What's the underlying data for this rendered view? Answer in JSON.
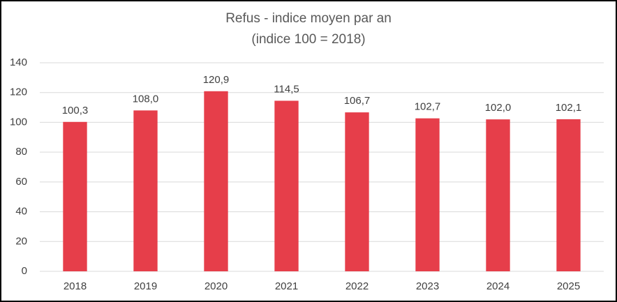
{
  "chart_data": {
    "type": "bar",
    "title": "Refus - indice moyen par an",
    "subtitle": "(indice 100 = 2018)",
    "categories": [
      "2018",
      "2019",
      "2020",
      "2021",
      "2022",
      "2023",
      "2024",
      "2025"
    ],
    "values": [
      100.3,
      108.0,
      120.9,
      114.5,
      106.7,
      102.7,
      102.0,
      102.1
    ],
    "value_labels": [
      "100,3",
      "108,0",
      "120,9",
      "114,5",
      "106,7",
      "102,7",
      "102,0",
      "102,1"
    ],
    "color": "#e63e4a",
    "ylim": [
      0,
      140
    ],
    "yticks": [
      0,
      20,
      40,
      60,
      80,
      100,
      120,
      140
    ],
    "grid": true
  }
}
